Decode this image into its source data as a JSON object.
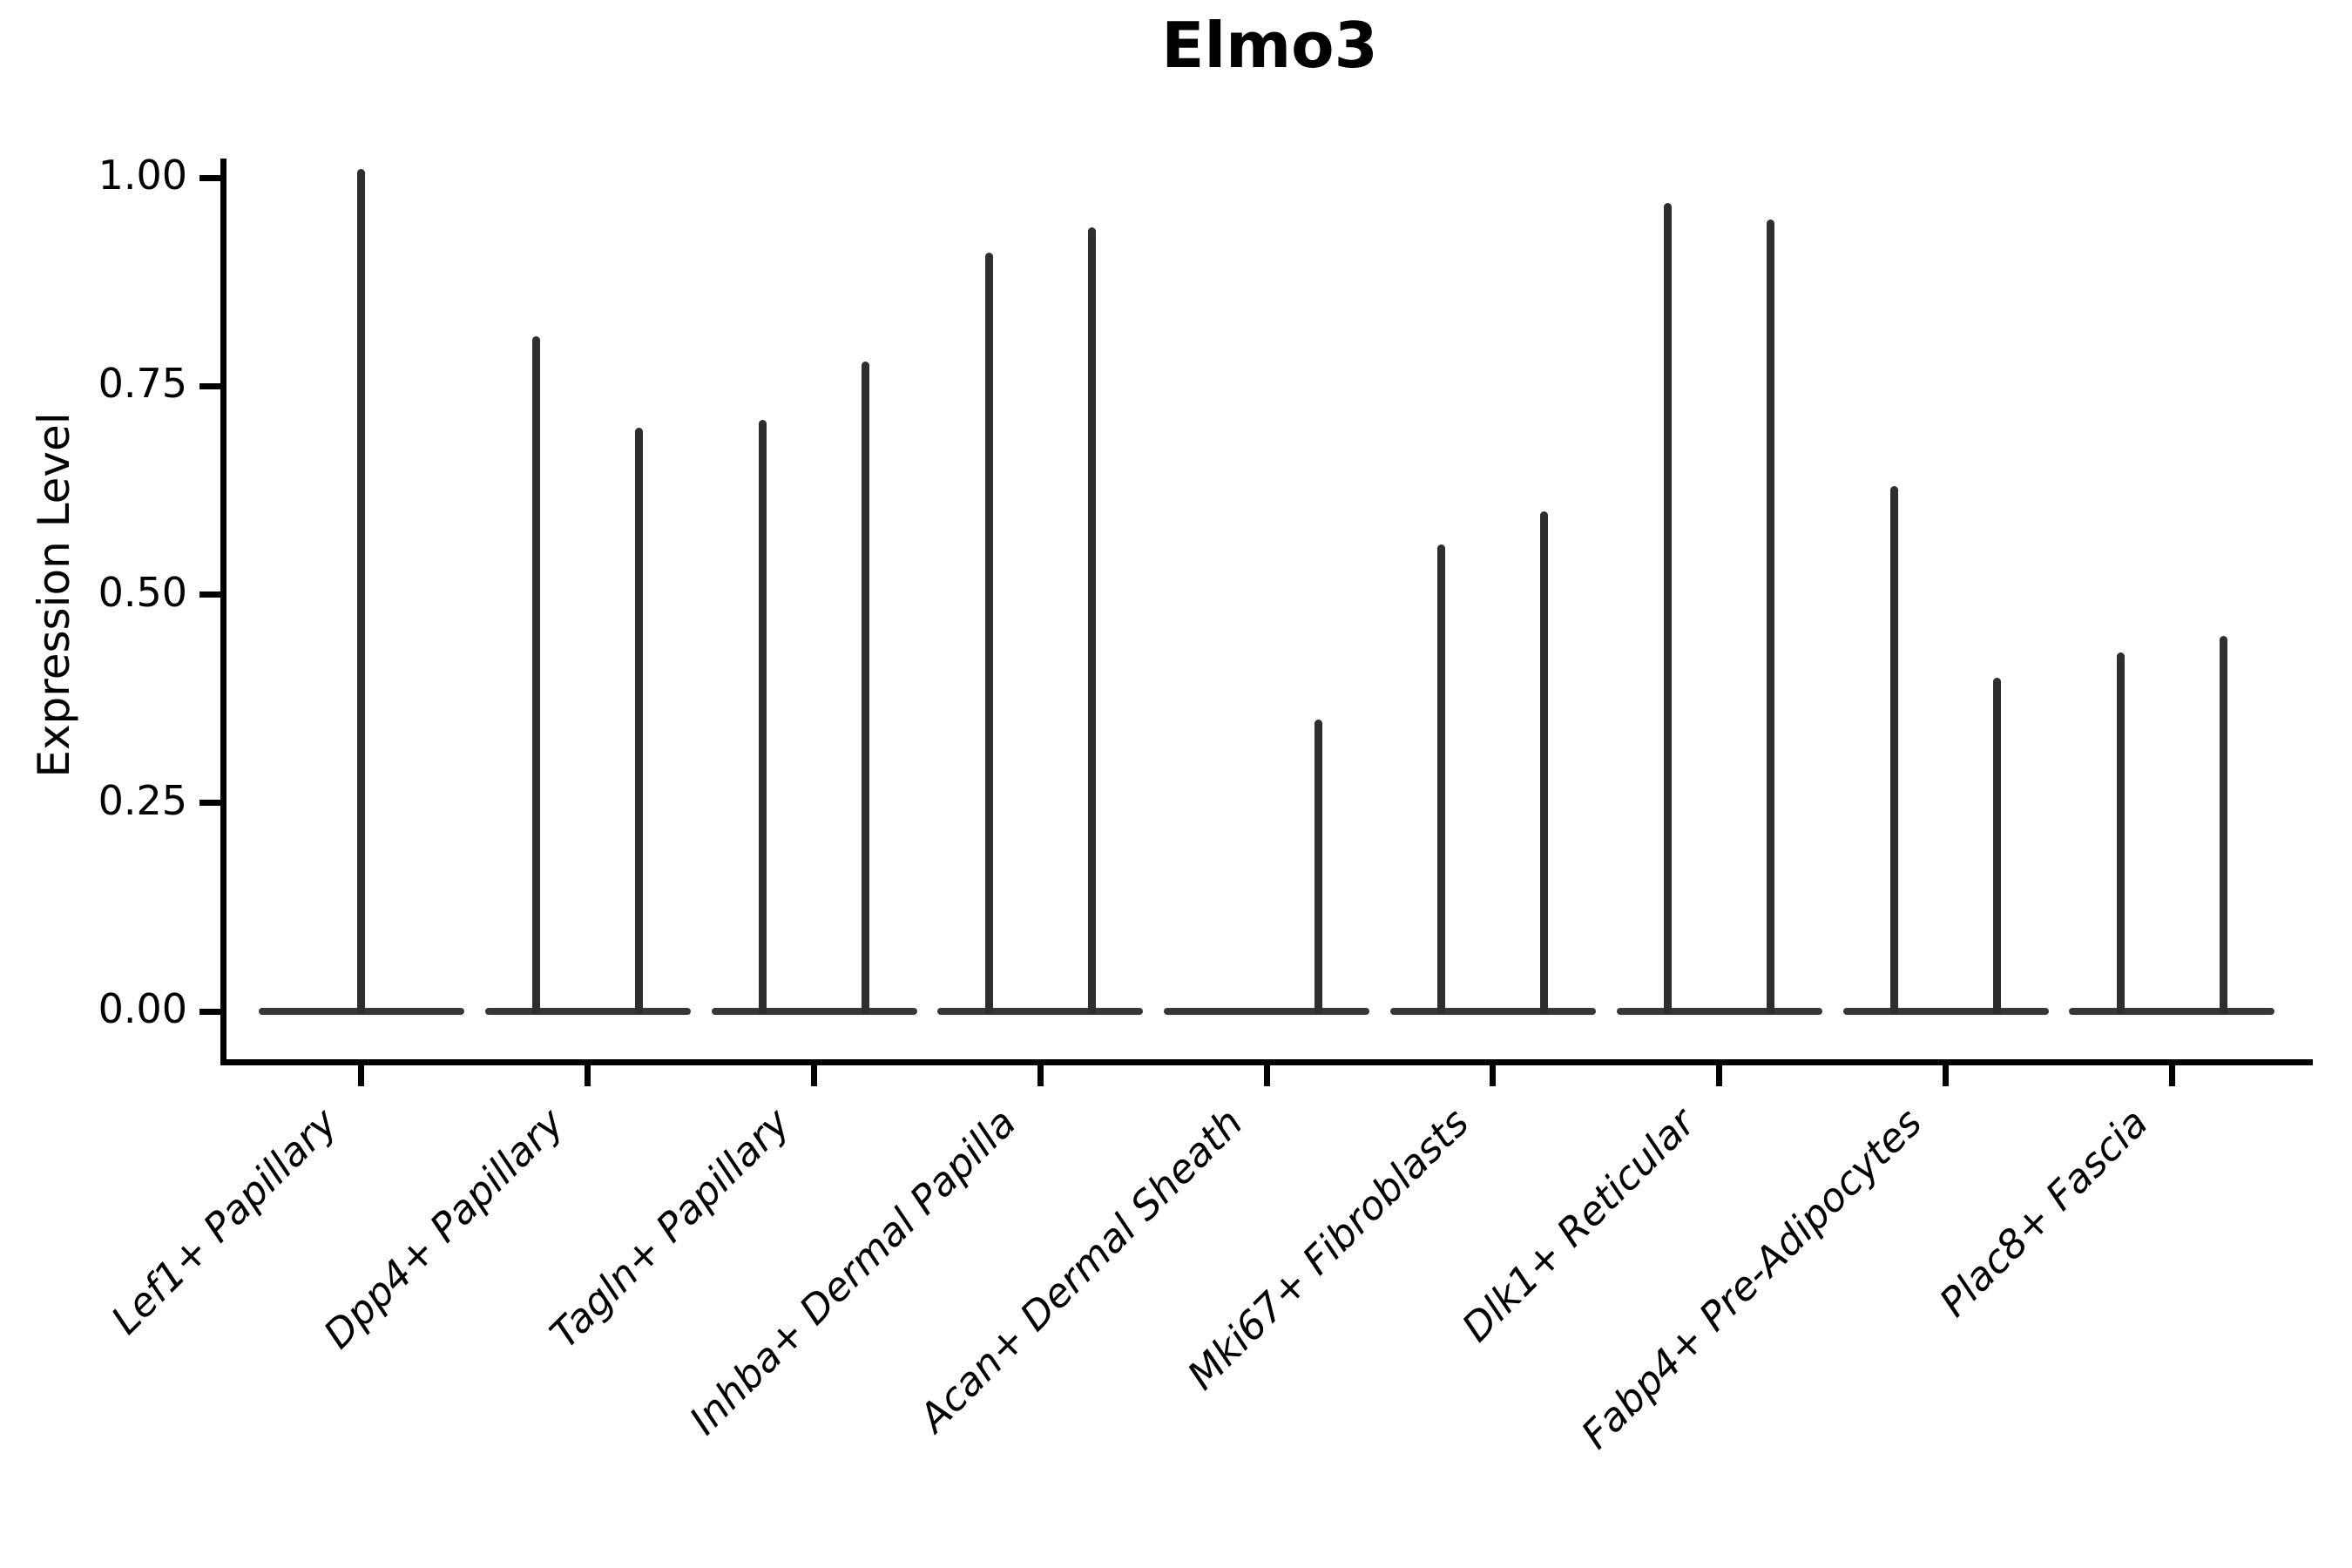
{
  "title": "Elmo3",
  "y_axis": {
    "label": "Expression Level",
    "tick_labels": [
      "1.00",
      "0.75",
      "0.50",
      "0.25",
      "0.00"
    ],
    "tick_values": [
      1.0,
      0.75,
      0.5,
      0.25,
      0.0
    ]
  },
  "x_axis": {
    "tick_labels": [
      "Lef1+ Papillary",
      "Dpp4+ Papillary",
      "Tagln+ Papillary",
      "Inhba+ Dermal Papilla",
      "Acan+ Dermal Sheath",
      "Mki67+ Fibroblasts",
      "Dlk1+ Reticular",
      "Fabp4+ Pre-Adipocytes",
      "Plac8+ Fascia"
    ]
  },
  "colors": {
    "violin": "#2e2e2e",
    "axis": "#000000",
    "background": "#ffffff"
  },
  "chart_data": {
    "type": "violin",
    "title": "Elmo3",
    "xlabel": "",
    "ylabel": "Expression Level",
    "ylim": [
      -0.06,
      1.07
    ],
    "yticks": [
      0.0,
      0.25,
      0.5,
      0.75,
      1.0
    ],
    "grid": false,
    "legend_position": "none",
    "description": "Collapsed (needle-like) violin plot of Elmo3 expression; each category shows a flat baseline at 0 with thin spikes reaching the maximum expression value; most categories contain two side-by-side violins.",
    "categories": [
      "Lef1+ Papillary",
      "Dpp4+ Papillary",
      "Tagln+ Papillary",
      "Inhba+ Dermal Papilla",
      "Acan+ Dermal Sheath",
      "Mki67+ Fibroblasts",
      "Dlk1+ Reticular",
      "Fabp4+ Pre-Adipocytes",
      "Plac8+ Fascia"
    ],
    "violins": [
      {
        "category": "Lef1+ Papillary",
        "spikes": [
          {
            "position": "center",
            "max": 1.01
          }
        ]
      },
      {
        "category": "Dpp4+ Papillary",
        "spikes": [
          {
            "position": "left",
            "max": 0.81
          },
          {
            "position": "right",
            "max": 0.7
          }
        ]
      },
      {
        "category": "Tagln+ Papillary",
        "spikes": [
          {
            "position": "left",
            "max": 0.71
          },
          {
            "position": "right",
            "max": 0.78
          }
        ]
      },
      {
        "category": "Inhba+ Dermal Papilla",
        "spikes": [
          {
            "position": "left",
            "max": 0.91
          },
          {
            "position": "right",
            "max": 0.94
          }
        ]
      },
      {
        "category": "Acan+ Dermal Sheath",
        "spikes": [
          {
            "position": "right",
            "max": 0.35
          }
        ]
      },
      {
        "category": "Mki67+ Fibroblasts",
        "spikes": [
          {
            "position": "left",
            "max": 0.56
          },
          {
            "position": "right",
            "max": 0.6
          }
        ]
      },
      {
        "category": "Dlk1+ Reticular",
        "spikes": [
          {
            "position": "left",
            "max": 0.97
          },
          {
            "position": "right",
            "max": 0.95
          }
        ]
      },
      {
        "category": "Fabp4+ Pre-Adipocytes",
        "spikes": [
          {
            "position": "left",
            "max": 0.63
          },
          {
            "position": "right",
            "max": 0.4
          }
        ]
      },
      {
        "category": "Plac8+ Fascia",
        "spikes": [
          {
            "position": "left",
            "max": 0.43
          },
          {
            "position": "right",
            "max": 0.45
          }
        ]
      }
    ]
  }
}
